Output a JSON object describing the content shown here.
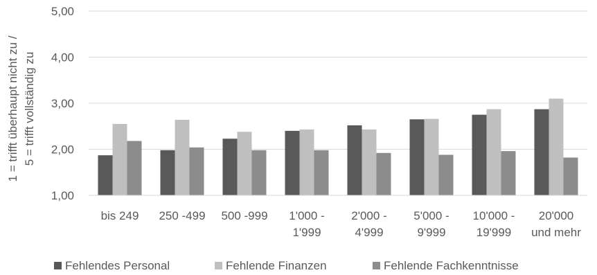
{
  "chart_data": {
    "type": "bar",
    "ylabel": "1 = trifft  überhaupt nicht zu / 5 = trifft vollständig zu",
    "ylabel_lines": [
      "1 = trifft  überhaupt nicht zu /",
      "5 = trifft vollständig zu"
    ],
    "ylim": [
      1,
      5
    ],
    "yticks": [
      1,
      2,
      3,
      4,
      5
    ],
    "ytick_labels": [
      "1,00",
      "2,00",
      "3,00",
      "4,00",
      "5,00"
    ],
    "grid": true,
    "legend_position": "bottom",
    "categories": [
      [
        "bis 249"
      ],
      [
        "250 -499"
      ],
      [
        "500 -999"
      ],
      [
        "1'000 -",
        "1'999"
      ],
      [
        "2'000 -",
        "4'999"
      ],
      [
        "5'000 -",
        "9'999"
      ],
      [
        "10'000 -",
        "19'999"
      ],
      [
        "20'000",
        "und mehr"
      ]
    ],
    "series": [
      {
        "name": "Fehlendes Personal",
        "color": "#595959",
        "values": [
          1.87,
          1.98,
          2.23,
          2.4,
          2.52,
          2.65,
          2.75,
          2.87
        ]
      },
      {
        "name": "Fehlende Finanzen",
        "color": "#bfbfbf",
        "values": [
          2.55,
          2.64,
          2.38,
          2.43,
          2.43,
          2.66,
          2.87,
          3.1
        ]
      },
      {
        "name": "Fehlende Fachkenntnisse",
        "color": "#8c8c8c",
        "values": [
          2.18,
          2.04,
          1.98,
          1.98,
          1.92,
          1.88,
          1.96,
          1.82
        ]
      }
    ]
  }
}
